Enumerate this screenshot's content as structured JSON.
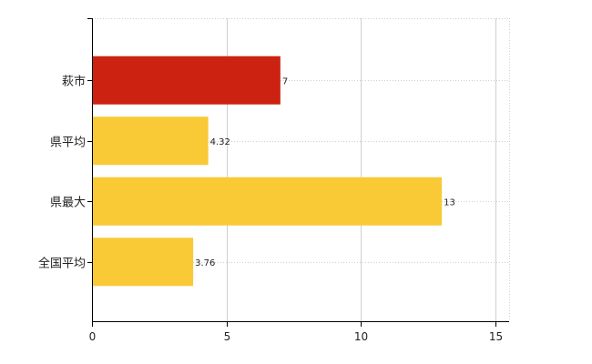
{
  "chart_data": {
    "type": "bar",
    "orientation": "horizontal",
    "categories": [
      "萩市",
      "県平均",
      "県最大",
      "全国平均"
    ],
    "values": [
      7,
      4.32,
      13,
      3.76
    ],
    "value_labels": [
      "7",
      "4.32",
      "13",
      "3.76"
    ],
    "bar_colors": [
      "#cc2211",
      "#f9c936",
      "#f9c936",
      "#f9c936"
    ],
    "xlim": [
      0,
      15.5
    ],
    "xticks": [
      0,
      5,
      10,
      15
    ],
    "xtick_labels": [
      "0",
      "5",
      "10",
      "15"
    ],
    "grid": true,
    "grid_style": "dotted",
    "legend": "none"
  }
}
